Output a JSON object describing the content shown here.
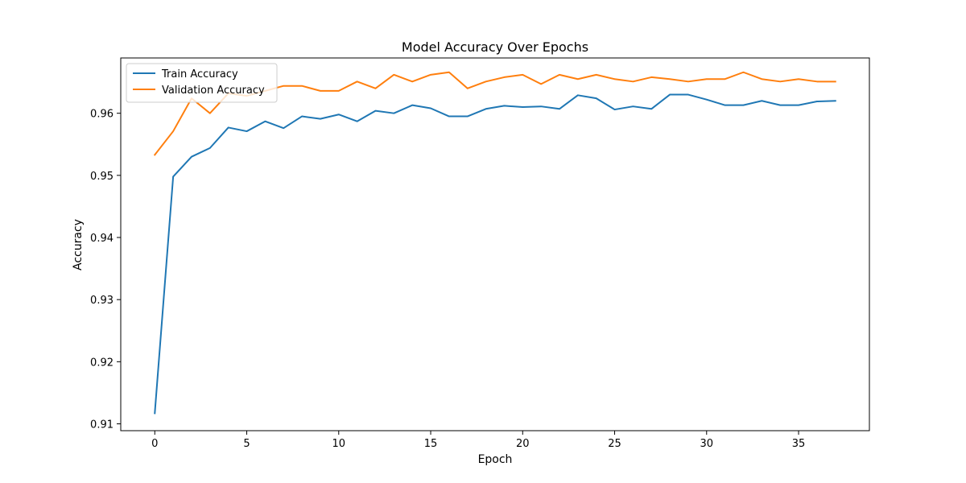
{
  "chart_data": {
    "type": "line",
    "title": "Model Accuracy Over Epochs",
    "xlabel": "Epoch",
    "ylabel": "Accuracy",
    "xlim": [
      -1.85,
      38.85
    ],
    "ylim": [
      0.9089,
      0.6689
    ],
    "x_ticks": [
      0,
      5,
      10,
      15,
      20,
      25,
      30,
      35
    ],
    "y_ticks": [
      0.91,
      0.92,
      0.93,
      0.94,
      0.95,
      0.96
    ],
    "y_tick_labels": [
      "0.91",
      "0.92",
      "0.93",
      "0.94",
      "0.95",
      "0.96"
    ],
    "grid": false,
    "legend_position": "top-left",
    "x": [
      0,
      1,
      2,
      3,
      4,
      5,
      6,
      7,
      8,
      9,
      10,
      11,
      12,
      13,
      14,
      15,
      16,
      17,
      18,
      19,
      20,
      21,
      22,
      23,
      24,
      25,
      26,
      27,
      28,
      29,
      30,
      31,
      32,
      33,
      34,
      35,
      36,
      37
    ],
    "series": [
      {
        "name": "Train Accuracy",
        "color": "#1f77b4",
        "values": [
          0.9117,
          0.9498,
          0.953,
          0.9544,
          0.9577,
          0.9571,
          0.9587,
          0.9576,
          0.9595,
          0.9591,
          0.9598,
          0.9587,
          0.9604,
          0.96,
          0.9613,
          0.9608,
          0.9595,
          0.9595,
          0.9607,
          0.9612,
          0.961,
          0.9611,
          0.9607,
          0.9629,
          0.9624,
          0.9606,
          0.9611,
          0.9607,
          0.963,
          0.963,
          0.9622,
          0.9613,
          0.9613,
          0.962,
          0.9613,
          0.9613,
          0.9619,
          0.962
        ]
      },
      {
        "name": "Validation Accuracy",
        "color": "#ff7f0e",
        "values": [
          0.9533,
          0.9571,
          0.9624,
          0.96,
          0.9632,
          0.9628,
          0.9636,
          0.9644,
          0.9644,
          0.9636,
          0.9636,
          0.9651,
          0.964,
          0.9662,
          0.9651,
          0.9662,
          0.9666,
          0.964,
          0.9651,
          0.9658,
          0.9662,
          0.9647,
          0.9662,
          0.9655,
          0.9662,
          0.9655,
          0.9651,
          0.9658,
          0.9655,
          0.9651,
          0.9655,
          0.9655,
          0.9666,
          0.9655,
          0.9651,
          0.9655,
          0.9651,
          0.9651
        ]
      }
    ]
  }
}
